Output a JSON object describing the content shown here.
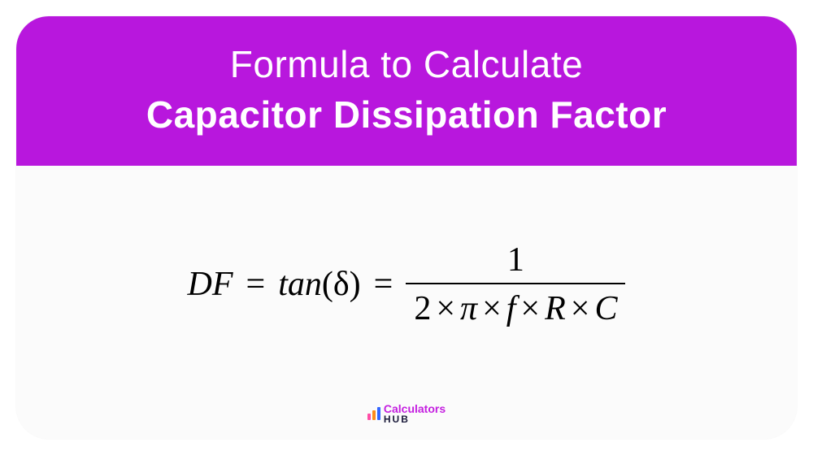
{
  "card": {
    "background_color": "#fbfbfb",
    "border_radius": 40
  },
  "header": {
    "background_color": "#b817dd",
    "text_color": "#ffffff",
    "line1": "Formula to Calculate",
    "line1_fontsize": 46,
    "line1_weight": 400,
    "line2": "Capacitor Dissipation Factor",
    "line2_fontsize": 46,
    "line2_weight": 700
  },
  "formula": {
    "text_color": "#000000",
    "fontsize": 42,
    "font_family": "serif",
    "lhs_var": "DF",
    "eq1": "=",
    "tan_label": "tan",
    "tan_arg": "(δ)",
    "eq2": "=",
    "numerator": "1",
    "denom_const": "2",
    "denom_pi": "π",
    "denom_f": "f",
    "denom_R": "R",
    "denom_C": "C",
    "times_symbol": "×",
    "fraction_bar_color": "#000000"
  },
  "footer": {
    "logo_text_top": "Calculators",
    "logo_text_bottom": "HUB",
    "logo_calc_color": "#c41fe0",
    "logo_hub_color": "#1a1a3a",
    "bar_colors": [
      "#ff4da6",
      "#ff8c1a",
      "#3366ff"
    ]
  }
}
